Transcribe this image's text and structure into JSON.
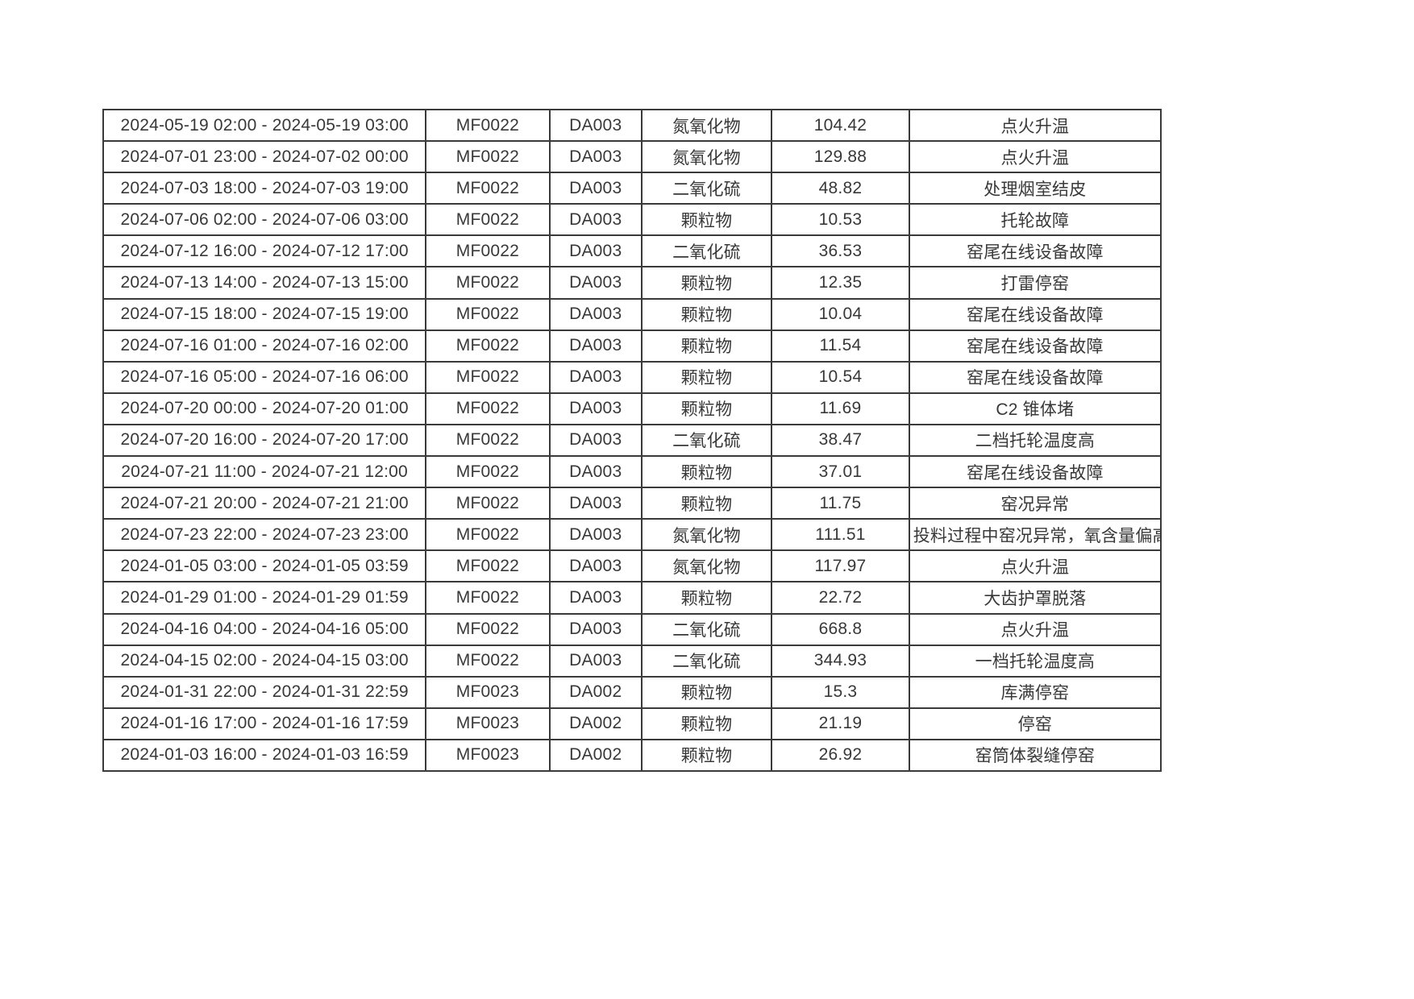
{
  "page": {
    "background": "#ffffff",
    "border_color": "#3a3a3a",
    "text_color": "#383838"
  },
  "table": {
    "columns": [
      "time_range",
      "facility",
      "outlet",
      "pollutant",
      "value",
      "reason"
    ],
    "rows": [
      {
        "time_range": "2024-05-19 02:00 - 2024-05-19 03:00",
        "facility": "MF0022",
        "outlet": "DA003",
        "pollutant": "氮氧化物",
        "value": "104.42",
        "reason": "点火升温"
      },
      {
        "time_range": "2024-07-01 23:00 - 2024-07-02 00:00",
        "facility": "MF0022",
        "outlet": "DA003",
        "pollutant": "氮氧化物",
        "value": "129.88",
        "reason": "点火升温"
      },
      {
        "time_range": "2024-07-03 18:00 - 2024-07-03 19:00",
        "facility": "MF0022",
        "outlet": "DA003",
        "pollutant": "二氧化硫",
        "value": "48.82",
        "reason": "处理烟室结皮"
      },
      {
        "time_range": "2024-07-06 02:00 - 2024-07-06 03:00",
        "facility": "MF0022",
        "outlet": "DA003",
        "pollutant": "颗粒物",
        "value": "10.53",
        "reason": "托轮故障"
      },
      {
        "time_range": "2024-07-12 16:00 - 2024-07-12 17:00",
        "facility": "MF0022",
        "outlet": "DA003",
        "pollutant": "二氧化硫",
        "value": "36.53",
        "reason": "窑尾在线设备故障"
      },
      {
        "time_range": "2024-07-13 14:00 - 2024-07-13 15:00",
        "facility": "MF0022",
        "outlet": "DA003",
        "pollutant": "颗粒物",
        "value": "12.35",
        "reason": "打雷停窑"
      },
      {
        "time_range": "2024-07-15 18:00 - 2024-07-15 19:00",
        "facility": "MF0022",
        "outlet": "DA003",
        "pollutant": "颗粒物",
        "value": "10.04",
        "reason": "窑尾在线设备故障"
      },
      {
        "time_range": "2024-07-16 01:00 - 2024-07-16 02:00",
        "facility": "MF0022",
        "outlet": "DA003",
        "pollutant": "颗粒物",
        "value": "11.54",
        "reason": "窑尾在线设备故障"
      },
      {
        "time_range": "2024-07-16 05:00 - 2024-07-16 06:00",
        "facility": "MF0022",
        "outlet": "DA003",
        "pollutant": "颗粒物",
        "value": "10.54",
        "reason": "窑尾在线设备故障"
      },
      {
        "time_range": "2024-07-20 00:00 - 2024-07-20 01:00",
        "facility": "MF0022",
        "outlet": "DA003",
        "pollutant": "颗粒物",
        "value": "11.69",
        "reason": "C2 锥体堵"
      },
      {
        "time_range": "2024-07-20 16:00 - 2024-07-20 17:00",
        "facility": "MF0022",
        "outlet": "DA003",
        "pollutant": "二氧化硫",
        "value": "38.47",
        "reason": "二档托轮温度高"
      },
      {
        "time_range": "2024-07-21 11:00 - 2024-07-21 12:00",
        "facility": "MF0022",
        "outlet": "DA003",
        "pollutant": "颗粒物",
        "value": "37.01",
        "reason": "窑尾在线设备故障"
      },
      {
        "time_range": "2024-07-21 20:00 - 2024-07-21 21:00",
        "facility": "MF0022",
        "outlet": "DA003",
        "pollutant": "颗粒物",
        "value": "11.75",
        "reason": "窑况异常"
      },
      {
        "time_range": "2024-07-23 22:00 - 2024-07-23 23:00",
        "facility": "MF0022",
        "outlet": "DA003",
        "pollutant": "氮氧化物",
        "value": "111.51",
        "reason": "投料过程中窑况异常，氧含量偏高"
      },
      {
        "time_range": "2024-01-05 03:00 - 2024-01-05 03:59",
        "facility": "MF0022",
        "outlet": "DA003",
        "pollutant": "氮氧化物",
        "value": "117.97",
        "reason": "点火升温"
      },
      {
        "time_range": "2024-01-29 01:00 - 2024-01-29 01:59",
        "facility": "MF0022",
        "outlet": "DA003",
        "pollutant": "颗粒物",
        "value": "22.72",
        "reason": "大齿护罩脱落"
      },
      {
        "time_range": "2024-04-16 04:00 - 2024-04-16 05:00",
        "facility": "MF0022",
        "outlet": "DA003",
        "pollutant": "二氧化硫",
        "value": "668.8",
        "reason": "点火升温"
      },
      {
        "time_range": "2024-04-15 02:00 - 2024-04-15 03:00",
        "facility": "MF0022",
        "outlet": "DA003",
        "pollutant": "二氧化硫",
        "value": "344.93",
        "reason": "一档托轮温度高"
      },
      {
        "time_range": "2024-01-31 22:00 - 2024-01-31 22:59",
        "facility": "MF0023",
        "outlet": "DA002",
        "pollutant": "颗粒物",
        "value": "15.3",
        "reason": "库满停窑"
      },
      {
        "time_range": "2024-01-16 17:00 - 2024-01-16 17:59",
        "facility": "MF0023",
        "outlet": "DA002",
        "pollutant": "颗粒物",
        "value": "21.19",
        "reason": "停窑"
      },
      {
        "time_range": "2024-01-03 16:00 - 2024-01-03 16:59",
        "facility": "MF0023",
        "outlet": "DA002",
        "pollutant": "颗粒物",
        "value": "26.92",
        "reason": "窑筒体裂缝停窑"
      }
    ]
  }
}
